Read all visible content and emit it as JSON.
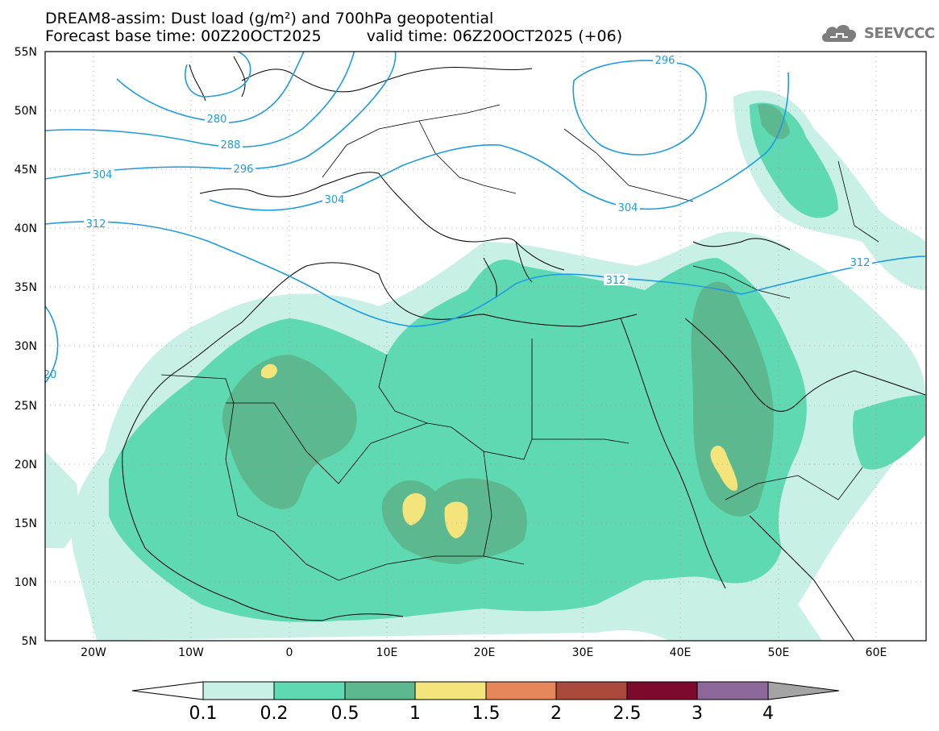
{
  "header": {
    "line1": "DREAM8-assim: Dust load (g/m²) and 700hPa geopotential",
    "base_time": "Forecast base time: 00Z20OCT2025",
    "valid_time": "valid time: 06Z20OCT2025 (+06)"
  },
  "logo": {
    "text": "SEEVCCC",
    "icon": "cloud-icon"
  },
  "map": {
    "lat_labels": [
      "55N",
      "50N",
      "45N",
      "40N",
      "35N",
      "30N",
      "25N",
      "20N",
      "15N",
      "10N",
      "5N"
    ],
    "lon_labels": [
      "20W",
      "10W",
      "0",
      "10E",
      "20E",
      "30E",
      "40E",
      "50E",
      "60E"
    ],
    "contour_labels": [
      "280",
      "288",
      "296",
      "304",
      "304",
      "312",
      "296",
      "304",
      "312",
      "312",
      "20"
    ]
  },
  "colorbar": {
    "labels": [
      "0.1",
      "0.2",
      "0.5",
      "1",
      "1.5",
      "2",
      "2.5",
      "3",
      "4"
    ],
    "colors": [
      "#c8f0e6",
      "#5ed9b2",
      "#5cb98f",
      "#f3e47b",
      "#e5875b",
      "#a8493c",
      "#7d0a2c",
      "#8c679a",
      "#a4a4a4"
    ]
  }
}
